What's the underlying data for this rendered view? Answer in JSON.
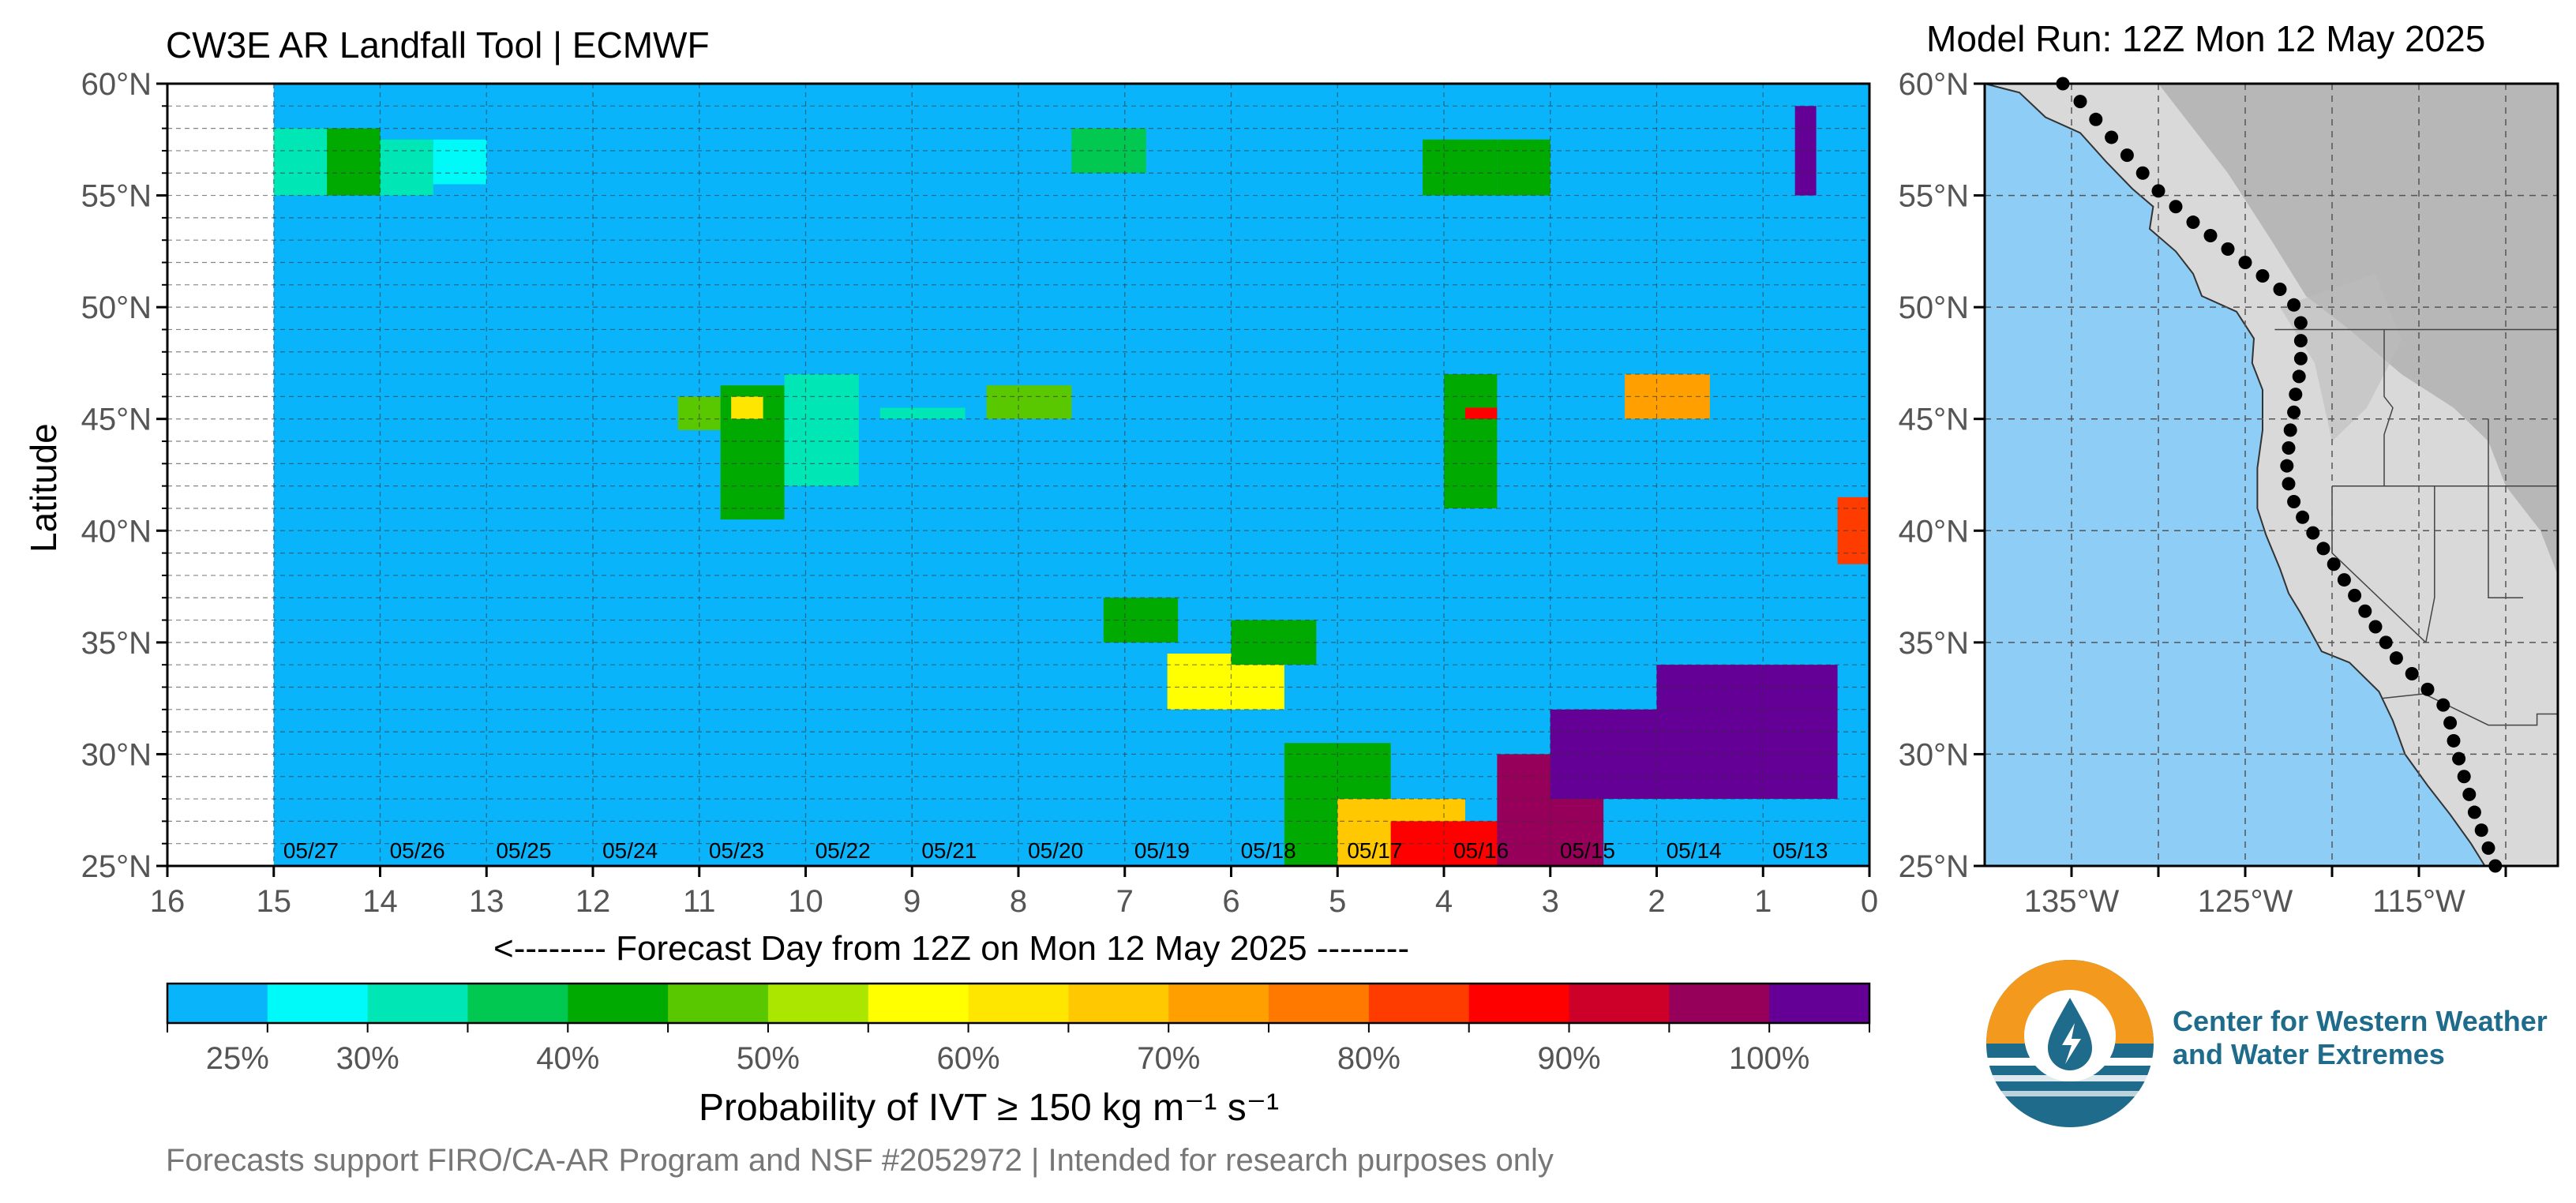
{
  "header": {
    "left_title": "CW3E AR Landfall Tool | ECMWF",
    "right_title": "Model Run: 12Z Mon 12 May 2025"
  },
  "main_chart": {
    "ylabel": "Latitude",
    "xlabel": "<-------- Forecast Day from 12Z on Mon 12 May 2025 --------",
    "lat_ticks": [
      "60°N",
      "55°N",
      "50°N",
      "45°N",
      "40°N",
      "35°N",
      "30°N",
      "25°N"
    ],
    "day_ticks": [
      "16",
      "15",
      "14",
      "13",
      "12",
      "11",
      "10",
      "9",
      "8",
      "7",
      "6",
      "5",
      "4",
      "3",
      "2",
      "1",
      "0"
    ],
    "date_labels": [
      "05/27",
      "05/26",
      "05/25",
      "05/24",
      "05/23",
      "05/22",
      "05/21",
      "05/20",
      "05/19",
      "05/18",
      "05/17",
      "05/16",
      "05/15",
      "05/14",
      "05/13"
    ]
  },
  "map": {
    "lat_ticks": [
      "60°N",
      "55°N",
      "50°N",
      "45°N",
      "40°N",
      "35°N",
      "30°N",
      "25°N"
    ],
    "lon_ticks": [
      "135°W",
      "125°W",
      "115°W"
    ],
    "ocean_color": "#8ecdf5",
    "point_color": "#000000"
  },
  "colorbar": {
    "colors": [
      "#0ab4fa",
      "#00fafa",
      "#00e6b4",
      "#00c850",
      "#00aa00",
      "#5ac800",
      "#aae600",
      "#ffff00",
      "#ffe600",
      "#ffc800",
      "#ffa000",
      "#ff7800",
      "#ff3c00",
      "#ff0000",
      "#cc0028",
      "#96005a",
      "#640096"
    ],
    "labels": [
      "25%",
      "30%",
      "40%",
      "50%",
      "60%",
      "70%",
      "80%",
      "90%",
      "100%"
    ],
    "title": "Probability of IVT  ≥  150 kg m⁻¹ s⁻¹"
  },
  "footer": "Forecasts support FIRO/CA-AR Program and NSF #2052972 | Intended for research purposes only",
  "logo": {
    "line1": "Center for Western Weather",
    "line2": "and Water Extremes"
  },
  "chart_data": {
    "type": "heatmap",
    "title": "CW3E AR Landfall Tool | ECMWF",
    "xlabel": "<-------- Forecast Day from 12Z on Mon 12 May 2025 --------",
    "ylabel": "Latitude",
    "x_range_days": [
      16,
      0
    ],
    "y_range_lat": [
      25,
      60
    ],
    "valid_days": [
      0,
      15
    ],
    "value_legend": "Probability of IVT ≥ 150 kg m⁻¹ s⁻¹",
    "levels_percent": [
      25,
      30,
      35,
      40,
      45,
      50,
      55,
      60,
      65,
      70,
      75,
      80,
      85,
      90,
      95,
      100
    ],
    "cells": [
      {
        "day_from": 14.5,
        "day_to": 15.0,
        "lat_from": 55,
        "lat_to": 58,
        "level": 2
      },
      {
        "day_from": 14.0,
        "day_to": 14.5,
        "lat_from": 55,
        "lat_to": 58,
        "level": 4
      },
      {
        "day_from": 13.5,
        "day_to": 14.0,
        "lat_from": 55,
        "lat_to": 57.5,
        "level": 2
      },
      {
        "day_from": 13.0,
        "day_to": 13.5,
        "lat_from": 55.5,
        "lat_to": 57.5,
        "level": 1
      },
      {
        "day_from": 10.8,
        "day_to": 11.2,
        "lat_from": 44.5,
        "lat_to": 46,
        "level": 5
      },
      {
        "day_from": 10.2,
        "day_to": 10.8,
        "lat_from": 40.5,
        "lat_to": 46.5,
        "level": 4
      },
      {
        "day_from": 10.4,
        "day_to": 10.7,
        "lat_from": 45,
        "lat_to": 46,
        "level": 8
      },
      {
        "day_from": 9.5,
        "day_to": 10.2,
        "lat_from": 42,
        "lat_to": 47,
        "level": 2
      },
      {
        "day_from": 8.5,
        "day_to": 9.3,
        "lat_from": 45,
        "lat_to": 45.5,
        "level": 2
      },
      {
        "day_from": 7.5,
        "day_to": 8.3,
        "lat_from": 45,
        "lat_to": 46.5,
        "level": 5
      },
      {
        "day_from": 6.8,
        "day_to": 7.5,
        "lat_from": 56,
        "lat_to": 58,
        "level": 3
      },
      {
        "day_from": 6.5,
        "day_to": 7.2,
        "lat_from": 35,
        "lat_to": 37,
        "level": 4
      },
      {
        "day_from": 5.5,
        "day_to": 6.6,
        "lat_from": 32,
        "lat_to": 34.5,
        "level": 7
      },
      {
        "day_from": 5.2,
        "day_to": 6.0,
        "lat_from": 34,
        "lat_to": 36,
        "level": 4
      },
      {
        "day_from": 4.5,
        "day_to": 5.5,
        "lat_from": 25,
        "lat_to": 30.5,
        "level": 4
      },
      {
        "day_from": 3.8,
        "day_to": 5.0,
        "lat_from": 25,
        "lat_to": 28,
        "level": 9
      },
      {
        "day_from": 3.3,
        "day_to": 4.5,
        "lat_from": 25,
        "lat_to": 27,
        "level": 13
      },
      {
        "day_from": 3.5,
        "day_to": 4.2,
        "lat_from": 55,
        "lat_to": 57.5,
        "level": 4
      },
      {
        "day_from": 3.0,
        "day_to": 3.5,
        "lat_from": 55,
        "lat_to": 57.5,
        "level": 4
      },
      {
        "day_from": 3.5,
        "day_to": 4.0,
        "lat_from": 41,
        "lat_to": 47,
        "level": 4
      },
      {
        "day_from": 3.5,
        "day_to": 3.8,
        "lat_from": 45,
        "lat_to": 45.5,
        "level": 13
      },
      {
        "day_from": 2.5,
        "day_to": 3.5,
        "lat_from": 25,
        "lat_to": 30,
        "level": 15
      },
      {
        "day_from": 1.5,
        "day_to": 2.3,
        "lat_from": 45,
        "lat_to": 47,
        "level": 10
      },
      {
        "day_from": 2.0,
        "day_to": 3.0,
        "lat_from": 28,
        "lat_to": 32,
        "level": 16
      },
      {
        "day_from": 0.3,
        "day_to": 2.0,
        "lat_from": 28,
        "lat_to": 34,
        "level": 16
      },
      {
        "day_from": 0.5,
        "day_to": 0.7,
        "lat_from": 55,
        "lat_to": 59,
        "level": 16
      },
      {
        "day_from": 0.0,
        "day_to": 0.3,
        "lat_from": 38.5,
        "lat_to": 41.5,
        "level": 12
      }
    ],
    "map_points_lonlat": [
      [
        -135.5,
        60.0
      ],
      [
        -134.5,
        59.2
      ],
      [
        -133.6,
        58.4
      ],
      [
        -132.7,
        57.6
      ],
      [
        -131.8,
        56.8
      ],
      [
        -130.9,
        56.0
      ],
      [
        -130.0,
        55.2
      ],
      [
        -129.0,
        54.5
      ],
      [
        -128.0,
        53.8
      ],
      [
        -127.0,
        53.2
      ],
      [
        -126.0,
        52.6
      ],
      [
        -125.0,
        52.0
      ],
      [
        -124.0,
        51.4
      ],
      [
        -123.0,
        50.8
      ],
      [
        -122.2,
        50.1
      ],
      [
        -121.8,
        49.3
      ],
      [
        -121.8,
        48.5
      ],
      [
        -121.8,
        47.7
      ],
      [
        -121.9,
        46.9
      ],
      [
        -122.1,
        46.1
      ],
      [
        -122.2,
        45.3
      ],
      [
        -122.4,
        44.5
      ],
      [
        -122.5,
        43.7
      ],
      [
        -122.6,
        42.9
      ],
      [
        -122.5,
        42.1
      ],
      [
        -122.2,
        41.3
      ],
      [
        -121.7,
        40.6
      ],
      [
        -121.1,
        39.9
      ],
      [
        -120.5,
        39.2
      ],
      [
        -119.9,
        38.5
      ],
      [
        -119.3,
        37.8
      ],
      [
        -118.7,
        37.1
      ],
      [
        -118.1,
        36.4
      ],
      [
        -117.5,
        35.7
      ],
      [
        -116.9,
        35.0
      ],
      [
        -116.3,
        34.3
      ],
      [
        -115.4,
        33.6
      ],
      [
        -114.5,
        32.9
      ],
      [
        -113.6,
        32.2
      ],
      [
        -113.2,
        31.4
      ],
      [
        -113.0,
        30.6
      ],
      [
        -112.7,
        29.8
      ],
      [
        -112.4,
        29.0
      ],
      [
        -112.1,
        28.2
      ],
      [
        -111.8,
        27.4
      ],
      [
        -111.4,
        26.6
      ],
      [
        -111.0,
        25.8
      ],
      [
        -110.6,
        25.0
      ]
    ]
  }
}
